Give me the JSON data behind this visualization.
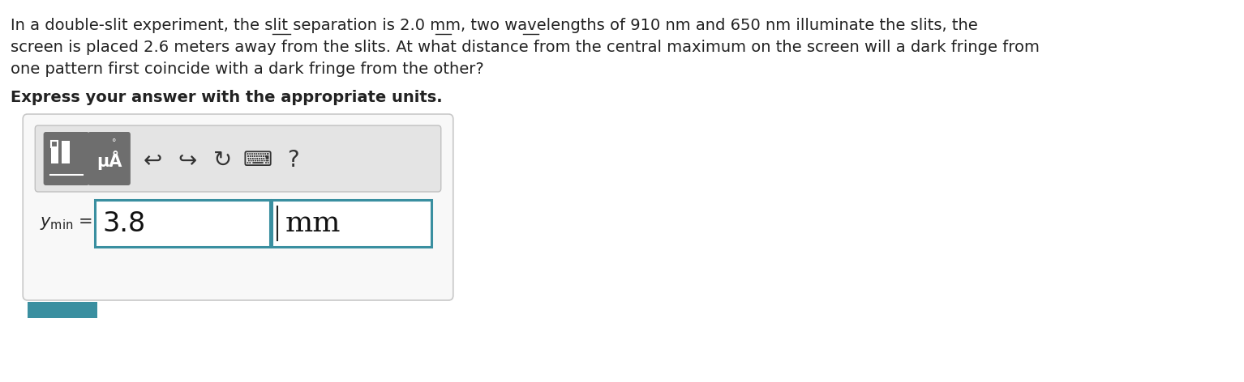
{
  "background_color": "#ffffff",
  "text_color": "#222222",
  "paragraph_lines": [
    "In a double-slit experiment, the slit separation is 2.0 mm, two wavelengths of 910 nm and 650 nm illuminate the slits, the",
    "screen is placed 2.6 meters away from the slits. At what distance from the central maximum on the screen will a dark fringe from",
    "one pattern first coincide with a dark fringe from the other?"
  ],
  "bold_text": "Express your answer with the appropriate units.",
  "answer_value": "3.8",
  "answer_unit": "mm",
  "outer_box_color": "#c8c8c8",
  "outer_box_face": "#f8f8f8",
  "toolbar_bg_color": "#e4e4e4",
  "toolbar_border_color": "#c0c0c0",
  "btn_dark_color": "#6e6e6e",
  "btn_dark_border": "#555555",
  "input_box_color": "#3a8fa0",
  "bottom_bar_color": "#3a8fa0",
  "icon_color": "#333333",
  "figsize": [
    15.34,
    4.72
  ],
  "dpi": 100,
  "text_fontsize": 14.0,
  "bold_fontsize": 14.0,
  "answer_fontsize": 24,
  "unit_fontsize": 26,
  "label_fontsize": 15
}
